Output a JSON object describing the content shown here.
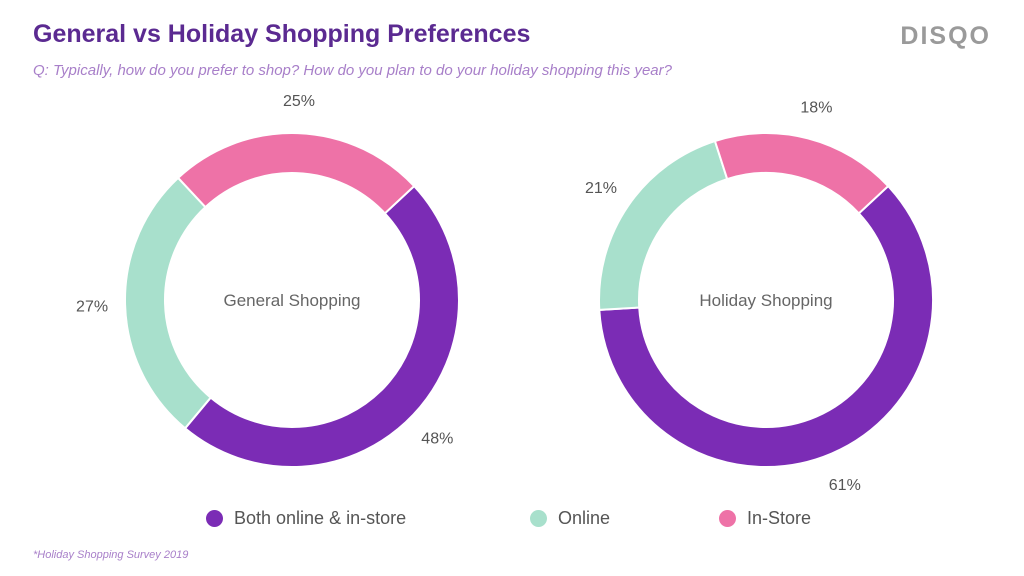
{
  "header": {
    "title": "General vs Holiday Shopping Preferences",
    "subtitle": "Q: Typically, how do you prefer to shop? How do you plan to do your holiday shopping this year?",
    "brand": "DISQO"
  },
  "footnote": "*Holiday Shopping Survey 2019",
  "chart_data": [
    {
      "type": "pie",
      "title": "General Shopping",
      "categories": [
        "Both online & in-store",
        "Online",
        "In-Store"
      ],
      "values": [
        48,
        27,
        25
      ],
      "labels": [
        "48%",
        "27%",
        "25%"
      ],
      "colors": [
        "#7b2cb5",
        "#a8e0cc",
        "#ee72a7"
      ],
      "donut": true
    },
    {
      "type": "pie",
      "title": "Holiday Shopping",
      "categories": [
        "Both online & in-store",
        "Online",
        "In-Store"
      ],
      "values": [
        61,
        21,
        18
      ],
      "labels": [
        "61%",
        "21%",
        "18%"
      ],
      "colors": [
        "#7b2cb5",
        "#a8e0cc",
        "#ee72a7"
      ],
      "donut": true
    }
  ],
  "legend": [
    {
      "label": "Both online & in-store",
      "color": "#7b2cb5"
    },
    {
      "label": "Online",
      "color": "#a8e0cc"
    },
    {
      "label": "In-Store",
      "color": "#ee72a7"
    }
  ]
}
